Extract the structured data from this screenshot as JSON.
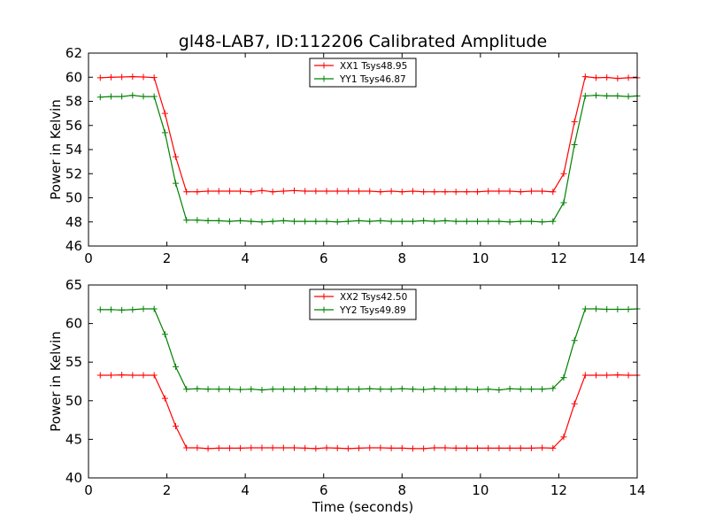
{
  "title": "gl48-LAB7, ID:112206 Calibrated Amplitude",
  "chart_data": [
    {
      "type": "line",
      "title": "gl48-LAB7, ID:112206 Calibrated Amplitude",
      "xlabel": "",
      "ylabel": "Power in Kelvin",
      "xlim": [
        0,
        14
      ],
      "ylim": [
        46,
        62
      ],
      "xticks": [
        0,
        2,
        4,
        6,
        8,
        10,
        12,
        14
      ],
      "yticks": [
        46,
        48,
        50,
        52,
        54,
        56,
        58,
        60,
        62
      ],
      "legend_position": "top-center",
      "grid": false,
      "x": [
        0.3,
        0.575,
        0.85,
        1.125,
        1.4,
        1.675,
        1.95,
        2.225,
        2.5,
        2.775,
        3.05,
        3.325,
        3.6,
        3.875,
        4.15,
        4.425,
        4.7,
        4.975,
        5.25,
        5.525,
        5.8,
        6.075,
        6.35,
        6.625,
        6.9,
        7.175,
        7.45,
        7.725,
        8.0,
        8.275,
        8.55,
        8.825,
        9.1,
        9.375,
        9.65,
        9.925,
        10.2,
        10.475,
        10.75,
        11.025,
        11.3,
        11.575,
        11.85,
        12.125,
        12.4,
        12.675,
        12.95,
        13.225,
        13.5,
        13.775,
        14.0
      ],
      "series": [
        {
          "name": "XX1 Tsys48.95",
          "color": "#ff0000",
          "values": [
            59.95,
            60.0,
            60.02,
            60.05,
            60.02,
            59.97,
            57.0,
            53.4,
            50.5,
            50.5,
            50.55,
            50.55,
            50.55,
            50.55,
            50.5,
            50.6,
            50.5,
            50.55,
            50.6,
            50.55,
            50.55,
            50.55,
            50.55,
            50.55,
            50.55,
            50.55,
            50.5,
            50.55,
            50.5,
            50.55,
            50.5,
            50.5,
            50.5,
            50.5,
            50.5,
            50.5,
            50.55,
            50.55,
            50.55,
            50.5,
            50.55,
            50.55,
            50.5,
            52.0,
            56.3,
            60.05,
            59.95,
            59.98,
            59.9,
            59.95,
            59.95
          ]
        },
        {
          "name": "YY1 Tsys46.87",
          "color": "#008000",
          "values": [
            58.35,
            58.4,
            58.4,
            58.5,
            58.4,
            58.4,
            55.4,
            51.2,
            48.15,
            48.15,
            48.1,
            48.1,
            48.05,
            48.1,
            48.05,
            48.0,
            48.05,
            48.1,
            48.05,
            48.05,
            48.05,
            48.05,
            48.0,
            48.05,
            48.1,
            48.05,
            48.1,
            48.05,
            48.05,
            48.05,
            48.1,
            48.05,
            48.1,
            48.05,
            48.05,
            48.05,
            48.05,
            48.05,
            48.0,
            48.05,
            48.05,
            48.0,
            48.05,
            49.6,
            54.4,
            58.45,
            58.5,
            58.45,
            58.45,
            58.4,
            58.45
          ]
        }
      ]
    },
    {
      "type": "line",
      "title": "",
      "xlabel": "Time (seconds)",
      "ylabel": "Power in Kelvin",
      "xlim": [
        0,
        14
      ],
      "ylim": [
        40,
        65
      ],
      "xticks": [
        0,
        2,
        4,
        6,
        8,
        10,
        12,
        14
      ],
      "yticks": [
        40,
        45,
        50,
        55,
        60,
        65
      ],
      "legend_position": "top-center",
      "grid": false,
      "x": [
        0.3,
        0.575,
        0.85,
        1.125,
        1.4,
        1.675,
        1.95,
        2.225,
        2.5,
        2.775,
        3.05,
        3.325,
        3.6,
        3.875,
        4.15,
        4.425,
        4.7,
        4.975,
        5.25,
        5.525,
        5.8,
        6.075,
        6.35,
        6.625,
        6.9,
        7.175,
        7.45,
        7.725,
        8.0,
        8.275,
        8.55,
        8.825,
        9.1,
        9.375,
        9.65,
        9.925,
        10.2,
        10.475,
        10.75,
        11.025,
        11.3,
        11.575,
        11.85,
        12.125,
        12.4,
        12.675,
        12.95,
        13.225,
        13.5,
        13.775,
        14.0
      ],
      "series": [
        {
          "name": "XX2 Tsys42.50",
          "color": "#ff0000",
          "values": [
            53.3,
            53.3,
            53.35,
            53.3,
            53.3,
            53.3,
            50.3,
            46.7,
            43.9,
            43.9,
            43.8,
            43.85,
            43.85,
            43.85,
            43.9,
            43.9,
            43.9,
            43.9,
            43.9,
            43.85,
            43.8,
            43.9,
            43.85,
            43.8,
            43.85,
            43.9,
            43.9,
            43.85,
            43.85,
            43.8,
            43.8,
            43.9,
            43.9,
            43.85,
            43.85,
            43.85,
            43.85,
            43.85,
            43.85,
            43.85,
            43.85,
            43.9,
            43.85,
            45.3,
            49.6,
            53.3,
            53.3,
            53.3,
            53.35,
            53.3,
            53.3
          ]
        },
        {
          "name": "YY2 Tsys49.89",
          "color": "#008000",
          "values": [
            61.8,
            61.8,
            61.75,
            61.8,
            61.9,
            61.9,
            58.6,
            54.4,
            51.5,
            51.55,
            51.5,
            51.5,
            51.5,
            51.45,
            51.5,
            51.4,
            51.5,
            51.5,
            51.5,
            51.5,
            51.55,
            51.5,
            51.5,
            51.5,
            51.5,
            51.55,
            51.5,
            51.5,
            51.55,
            51.5,
            51.45,
            51.55,
            51.5,
            51.5,
            51.5,
            51.45,
            51.5,
            51.4,
            51.55,
            51.5,
            51.5,
            51.5,
            51.6,
            53.0,
            57.8,
            61.9,
            61.9,
            61.85,
            61.85,
            61.85,
            61.9
          ]
        }
      ]
    }
  ]
}
